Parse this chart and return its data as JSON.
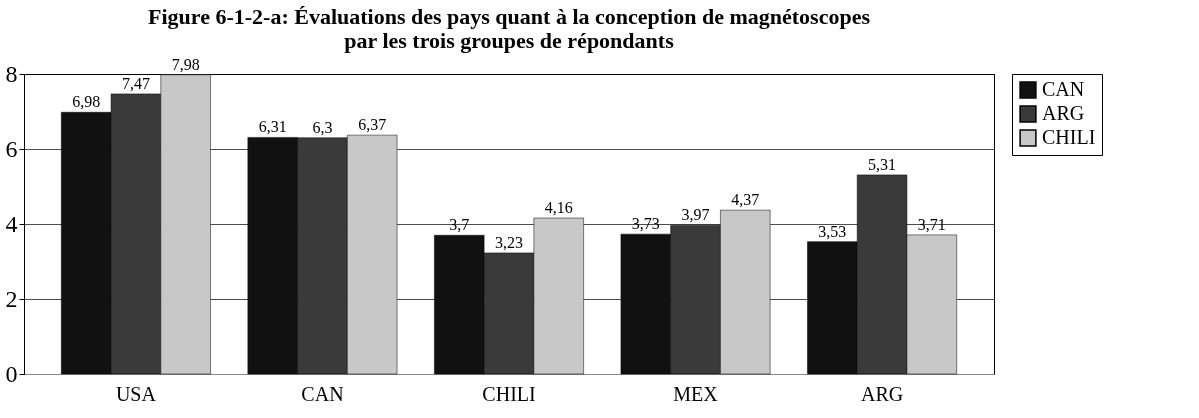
{
  "chart_data": {
    "type": "bar",
    "title": "Figure 6-1-2-a: Évaluations des pays quant à la conception de magnétoscopes\npar les trois groupes de répondants",
    "categories": [
      "USA",
      "CAN",
      "CHILI",
      "MEX",
      "ARG"
    ],
    "series": [
      {
        "name": "CAN",
        "color": "#111111",
        "values": [
          6.98,
          6.31,
          3.7,
          3.73,
          3.53
        ],
        "value_labels": [
          "6,98",
          "6,31",
          "3,7",
          "3,73",
          "3,53"
        ]
      },
      {
        "name": "ARG",
        "color": "#3a3a3a",
        "values": [
          7.47,
          6.3,
          3.23,
          3.97,
          5.31
        ],
        "value_labels": [
          "7,47",
          "6,3",
          "3,23",
          "3,97",
          "5,31"
        ]
      },
      {
        "name": "CHILI",
        "color": "#c8c8c8",
        "values": [
          7.98,
          6.37,
          4.16,
          4.37,
          3.71
        ],
        "value_labels": [
          "7,98",
          "6,37",
          "4,16",
          "4,37",
          "3,71"
        ]
      }
    ],
    "ylim": [
      0,
      8
    ],
    "yticks": [
      0,
      2,
      4,
      6,
      8
    ],
    "grid": "y",
    "legend": "right"
  }
}
